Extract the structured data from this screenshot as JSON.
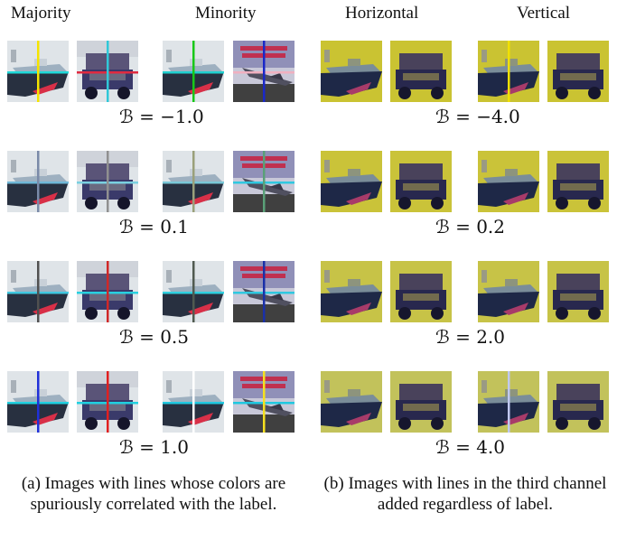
{
  "headers": {
    "majority": "Majority",
    "minority": "Minority",
    "horizontal": "Horizontal",
    "vertical": "Vertical"
  },
  "left_rows": [
    {
      "label": "ℬ = −1.0",
      "lines": [
        {
          "v": "#f5e400",
          "h": "#1fd9d9"
        },
        {
          "v": "#30c8d8",
          "h": "#e02a40"
        },
        {
          "v": "#18c818",
          "h": "#20d0d0"
        },
        {
          "v": "#1a28c8",
          "h": "#f0b0c0"
        }
      ]
    },
    {
      "label": "ℬ = 0.1",
      "lines": [
        {
          "v": "#7a8aa8",
          "h": "#70b8d8"
        },
        {
          "v": "#909090",
          "h": "#7ad0e0"
        },
        {
          "v": "#9aa07a",
          "h": "#7ac8d8"
        },
        {
          "v": "#5aa078",
          "h": "#30c8e0"
        }
      ]
    },
    {
      "label": "ℬ = 0.5",
      "lines": [
        {
          "v": "#505050",
          "h": "#40c8e0"
        },
        {
          "v": "#d02828",
          "h": "#28d0e0"
        },
        {
          "v": "#505a50",
          "h": "#30d0e0"
        },
        {
          "v": "#1a30a8",
          "h": "#30c8e0"
        }
      ]
    },
    {
      "label": "ℬ = 1.0",
      "lines": [
        {
          "v": "#2030d8",
          "h": "#20d0e0"
        },
        {
          "v": "#e02020",
          "h": "#20d0e0"
        },
        {
          "v": "#ffffff",
          "h": "#20c8e0"
        },
        {
          "v": "#f5e020",
          "h": "#20c8e0"
        }
      ]
    }
  ],
  "right_rows": [
    {
      "label": "ℬ = −4.0",
      "tint": "#e8e030",
      "lines": [
        {
          "v": "",
          "h": ""
        },
        {
          "v": "",
          "h": ""
        },
        {
          "v": "#f0e000",
          "h": ""
        },
        {
          "v": "",
          "h": ""
        }
      ]
    },
    {
      "label": "ℬ = 0.2",
      "tint": "#e8e038",
      "lines": [
        {
          "v": "",
          "h": ""
        },
        {
          "v": "",
          "h": ""
        },
        {
          "v": "",
          "h": ""
        },
        {
          "v": "",
          "h": ""
        }
      ]
    },
    {
      "label": "ℬ = 2.0",
      "tint": "#e4e048",
      "lines": [
        {
          "v": "",
          "h": ""
        },
        {
          "v": "",
          "h": ""
        },
        {
          "v": "",
          "h": ""
        },
        {
          "v": "",
          "h": ""
        }
      ]
    },
    {
      "label": "ℬ = 4.0",
      "tint": "#dede60",
      "lines": [
        {
          "v": "",
          "h": ""
        },
        {
          "v": "",
          "h": ""
        },
        {
          "v": "#c0c8f0",
          "h": ""
        },
        {
          "v": "",
          "h": ""
        }
      ]
    }
  ],
  "captions": {
    "a": "(a) Images with lines whose colors are spuriously correlated with the label.",
    "b": "(b) Images with lines in the third channel added regardless of label."
  }
}
